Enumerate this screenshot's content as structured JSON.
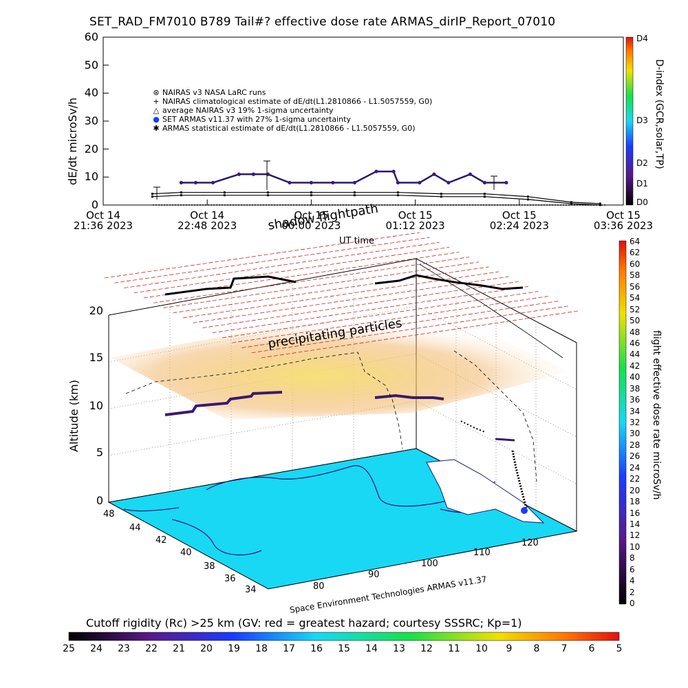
{
  "title": "SET_RAD_FM7010  B789 Tail#? effective dose rate ARMAS_dirIP_Report_07010",
  "top_chart": {
    "ylabel": "dE/dt microSv/h",
    "yticks": [
      "0",
      "10",
      "20",
      "30",
      "40",
      "50",
      "60"
    ],
    "xticks": [
      {
        "l1": "Oct 14",
        "l2": "21:36 2023"
      },
      {
        "l1": "Oct 14",
        "l2": "22:48 2023"
      },
      {
        "l1": "Oct 15",
        "l2": "00:00 2023"
      },
      {
        "l1": "Oct 15",
        "l2": "01:12 2023"
      },
      {
        "l1": "Oct 15",
        "l2": "02:24 2023"
      },
      {
        "l1": "Oct 15",
        "l2": "03:36 2023"
      }
    ],
    "xlabel": "UT time",
    "right_axis_label": "D-index (GCR,solar,TP)",
    "right_ticks": [
      "D4",
      "D3",
      "D2",
      "D1",
      "D0"
    ],
    "legend": [
      {
        "sym": "⊛",
        "text": "NAIRAS v3 NASA LaRC runs"
      },
      {
        "sym": "+",
        "text": "NAIRAS climatological estimate of dE/dt(L1.2810866 - L1.5057559, G0)"
      },
      {
        "sym": "△",
        "text": "average NAIRAS v3 19% 1-sigma uncertainty"
      },
      {
        "sym": "●",
        "text": "SET ARMAS v11.37 with 27% 1-sigma uncertainty"
      },
      {
        "sym": "✱",
        "text": "ARMAS statistical estimate of dE/dt(L1.2810866 - L1.5057559, G0)"
      }
    ]
  },
  "chart_data": [
    {
      "type": "scatter",
      "title": "SET_RAD_FM7010  B789 Tail#? effective dose rate ARMAS_dirIP_Report_07010",
      "xlabel": "UT time",
      "ylabel": "dE/dt microSv/h",
      "ylim": [
        0,
        60
      ],
      "xlim": [
        "2023-10-14 21:36",
        "2023-10-15 03:36"
      ],
      "series": [
        {
          "name": "SET ARMAS v11.37 with 27% 1-sigma uncertainty",
          "x": [
            "22:30",
            "22:40",
            "22:52",
            "23:10",
            "23:20",
            "23:30",
            "23:45",
            "00:00",
            "00:15",
            "00:30",
            "00:45",
            "00:57",
            "01:00",
            "01:15",
            "01:25",
            "01:35",
            "01:50",
            "02:00",
            "02:15"
          ],
          "y": [
            8,
            8,
            8,
            11,
            11,
            11,
            8,
            8,
            8,
            8,
            12,
            12,
            8,
            8,
            11,
            8,
            11,
            8,
            8
          ]
        },
        {
          "name": "NAIRAS climatological estimate of dE/dt(L1.2810866 - L1.5057559, G0)",
          "x": [
            "22:10",
            "22:30",
            "23:00",
            "23:30",
            "00:00",
            "00:30",
            "01:00",
            "01:30",
            "02:00",
            "02:30",
            "03:00",
            "03:20"
          ],
          "y": [
            4,
            4.5,
            4.5,
            4.5,
            4.5,
            4.5,
            4.5,
            4,
            4,
            3,
            1,
            0.5
          ]
        },
        {
          "name": "ARMAS statistical estimate of dE/dt(L1.2810866 - L1.5057559, G0)",
          "x": [
            "22:10",
            "22:30",
            "23:00",
            "23:30",
            "00:00",
            "00:30",
            "01:00",
            "01:30",
            "02:00",
            "02:30",
            "03:00",
            "03:20"
          ],
          "y": [
            3,
            3.5,
            3.5,
            3.5,
            3.5,
            3.5,
            3.5,
            3,
            3,
            2,
            0.5,
            0
          ]
        }
      ]
    },
    {
      "type": "heatmap",
      "title": "",
      "zlabel": "Altitude (km)",
      "zlim": [
        0,
        20
      ],
      "lat_ticks": [
        48,
        44,
        42,
        40,
        38,
        36,
        34
      ],
      "lon_ticks": [
        80,
        90,
        100,
        110,
        120
      ],
      "colorbar_label": "flight effective dose rate microSv/h",
      "colorbar_ticks": [
        64,
        62,
        60,
        58,
        56,
        54,
        52,
        50,
        48,
        46,
        44,
        42,
        40,
        38,
        36,
        34,
        32,
        30,
        28,
        26,
        24,
        22,
        20,
        18,
        16,
        14,
        12,
        10,
        8,
        6,
        4,
        2,
        0
      ]
    }
  ],
  "scene": {
    "label_shadow": "shadow flightpath",
    "label_precip": "precipitating particles",
    "credit": "Space Environment Technologies ARMAS v11.37",
    "ztitle": "Altitude (km)",
    "zticks": [
      "20",
      "15",
      "10",
      "5",
      "0"
    ],
    "lat_ticks": [
      "48",
      "44",
      "42",
      "40",
      "38",
      "36",
      "34"
    ],
    "lon_ticks": [
      "80",
      "90",
      "100",
      "110",
      "120"
    ],
    "colorbar_label": "flight effective dose rate microSv/h",
    "colorbar_ticks": [
      "64",
      "62",
      "60",
      "58",
      "56",
      "54",
      "52",
      "50",
      "48",
      "46",
      "44",
      "42",
      "40",
      "38",
      "36",
      "34",
      "32",
      "30",
      "28",
      "26",
      "24",
      "22",
      "20",
      "18",
      "16",
      "14",
      "12",
      "10",
      "8",
      "6",
      "4",
      "2",
      "0"
    ]
  },
  "bottom_bar": {
    "label": "Cutoff rigidity (Rc) >25 km (GV: red = greatest hazard; courtesy SSSRC; Kp=1)",
    "ticks": [
      "25",
      "24",
      "23",
      "22",
      "21",
      "20",
      "19",
      "18",
      "17",
      "16",
      "15",
      "14",
      "13",
      "12",
      "11",
      "10",
      "9",
      "8",
      "7",
      "6",
      "5"
    ]
  },
  "colors": {
    "ocean": "#18d8f4",
    "flight": "#3a1a6e",
    "grid_red": "#cc2020",
    "precip": "#f0c040"
  }
}
